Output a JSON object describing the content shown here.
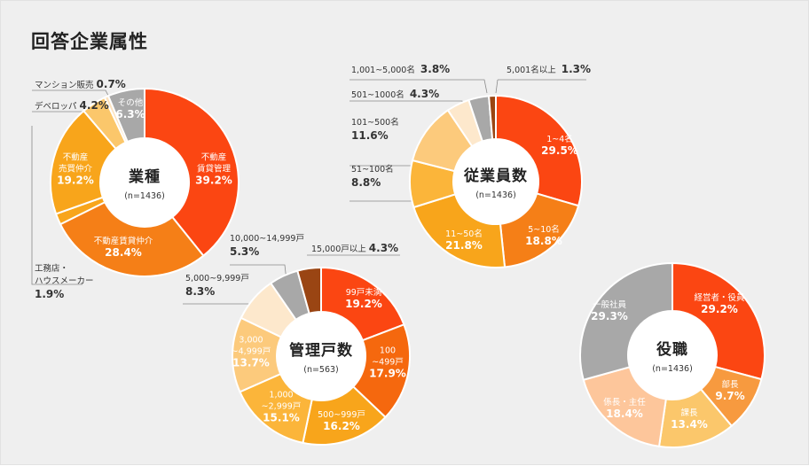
{
  "title": "回答企業属性",
  "charts": [
    {
      "id": "gyoshu",
      "center_title": "業種",
      "n": "(n=1436)",
      "slices": [
        {
          "label": "不動産\n賃貸管理",
          "value": 39.2,
          "pct": "39.2%",
          "color": "#fb4612"
        },
        {
          "label": "不動産賃貸仲介",
          "value": 28.4,
          "pct": "28.4%",
          "color": "#f57f17"
        },
        {
          "label": "工務店・\nハウスメーカー",
          "value": 1.9,
          "pct": "1.9%",
          "color": "#f8a51b"
        },
        {
          "label": "不動産\n売買仲介",
          "value": 19.2,
          "pct": "19.2%",
          "color": "#f8a51b"
        },
        {
          "label": "デベロッパ",
          "value": 4.2,
          "pct": "4.2%",
          "color": "#fbc76b"
        },
        {
          "label": "マンション販売",
          "value": 0.7,
          "pct": "0.7%",
          "color": "#fde3c0"
        },
        {
          "label": "その他",
          "value": 6.3,
          "pct": "6.3%",
          "color": "#a8a8a8"
        }
      ]
    },
    {
      "id": "jugyoin",
      "center_title": "従業員数",
      "n": "(n=1436)",
      "slices": [
        {
          "label": "1~4名",
          "value": 29.5,
          "pct": "29.5%",
          "color": "#fb4612"
        },
        {
          "label": "5~10名",
          "value": 18.8,
          "pct": "18.8%",
          "color": "#f57f17"
        },
        {
          "label": "11~50名",
          "value": 21.8,
          "pct": "21.8%",
          "color": "#f8a51b"
        },
        {
          "label": "51~100名",
          "value": 8.8,
          "pct": "8.8%",
          "color": "#fbb53a"
        },
        {
          "label": "101~500名",
          "value": 11.6,
          "pct": "11.6%",
          "color": "#fcca7c"
        },
        {
          "label": "501~1000名",
          "value": 4.3,
          "pct": "4.3%",
          "color": "#fde8cc"
        },
        {
          "label": "1,001~5,000名",
          "value": 3.8,
          "pct": "3.8%",
          "color": "#a8a8a8"
        },
        {
          "label": "5,001名以上",
          "value": 1.3,
          "pct": "1.3%",
          "color": "#9a4513"
        }
      ]
    },
    {
      "id": "kanri",
      "center_title": "管理戸数",
      "n": "(n=563)",
      "slices": [
        {
          "label": "99戸未満",
          "value": 19.2,
          "pct": "19.2%",
          "color": "#fb4612"
        },
        {
          "label": "100\n~499戸",
          "value": 17.9,
          "pct": "17.9%",
          "color": "#f5680e"
        },
        {
          "label": "500~999戸",
          "value": 16.2,
          "pct": "16.2%",
          "color": "#f8a51b"
        },
        {
          "label": "1,000\n~2,999戸",
          "value": 15.1,
          "pct": "15.1%",
          "color": "#fbb53a"
        },
        {
          "label": "3,000\n~4,999戸",
          "value": 13.7,
          "pct": "13.7%",
          "color": "#fcca7c"
        },
        {
          "label": "5,000~9,999戸",
          "value": 8.3,
          "pct": "8.3%",
          "color": "#fde8cc"
        },
        {
          "label": "10,000~14,999戸",
          "value": 5.3,
          "pct": "5.3%",
          "color": "#a8a8a8"
        },
        {
          "label": "15,000戸以上",
          "value": 4.3,
          "pct": "4.3%",
          "color": "#9a4513"
        }
      ]
    },
    {
      "id": "yakushoku",
      "center_title": "役職",
      "n": "(n=1436)",
      "slices": [
        {
          "label": "経営者・役員",
          "value": 29.2,
          "pct": "29.2%",
          "color": "#fb4612"
        },
        {
          "label": "部長",
          "value": 9.7,
          "pct": "9.7%",
          "color": "#f79a3f"
        },
        {
          "label": "課長",
          "value": 13.4,
          "pct": "13.4%",
          "color": "#fbc76b"
        },
        {
          "label": "係長・主任",
          "value": 18.4,
          "pct": "18.4%",
          "color": "#fdc69b"
        },
        {
          "label": "一般社員",
          "value": 29.3,
          "pct": "29.3%",
          "color": "#a8a8a8"
        }
      ]
    }
  ],
  "chart_data": [
    {
      "type": "pie",
      "title": "業種",
      "n": 1436,
      "categories": [
        "不動産賃貸管理",
        "不動産賃貸仲介",
        "工務店・ハウスメーカー",
        "不動産売買仲介",
        "デベロッパ",
        "マンション販売",
        "その他"
      ],
      "values": [
        39.2,
        28.4,
        1.9,
        19.2,
        4.2,
        0.7,
        6.3
      ]
    },
    {
      "type": "pie",
      "title": "従業員数",
      "n": 1436,
      "categories": [
        "1~4名",
        "5~10名",
        "11~50名",
        "51~100名",
        "101~500名",
        "501~1000名",
        "1,001~5,000名",
        "5,001名以上"
      ],
      "values": [
        29.5,
        18.8,
        21.8,
        8.8,
        11.6,
        4.3,
        3.8,
        1.3
      ]
    },
    {
      "type": "pie",
      "title": "管理戸数",
      "n": 563,
      "categories": [
        "99戸未満",
        "100~499戸",
        "500~999戸",
        "1,000~2,999戸",
        "3,000~4,999戸",
        "5,000~9,999戸",
        "10,000~14,999戸",
        "15,000戸以上"
      ],
      "values": [
        19.2,
        17.9,
        16.2,
        15.1,
        13.7,
        8.3,
        5.3,
        4.3
      ]
    },
    {
      "type": "pie",
      "title": "役職",
      "n": 1436,
      "categories": [
        "経営者・役員",
        "部長",
        "課長",
        "係長・主任",
        "一般社員"
      ],
      "values": [
        29.2,
        9.7,
        13.4,
        18.4,
        29.3
      ]
    }
  ]
}
